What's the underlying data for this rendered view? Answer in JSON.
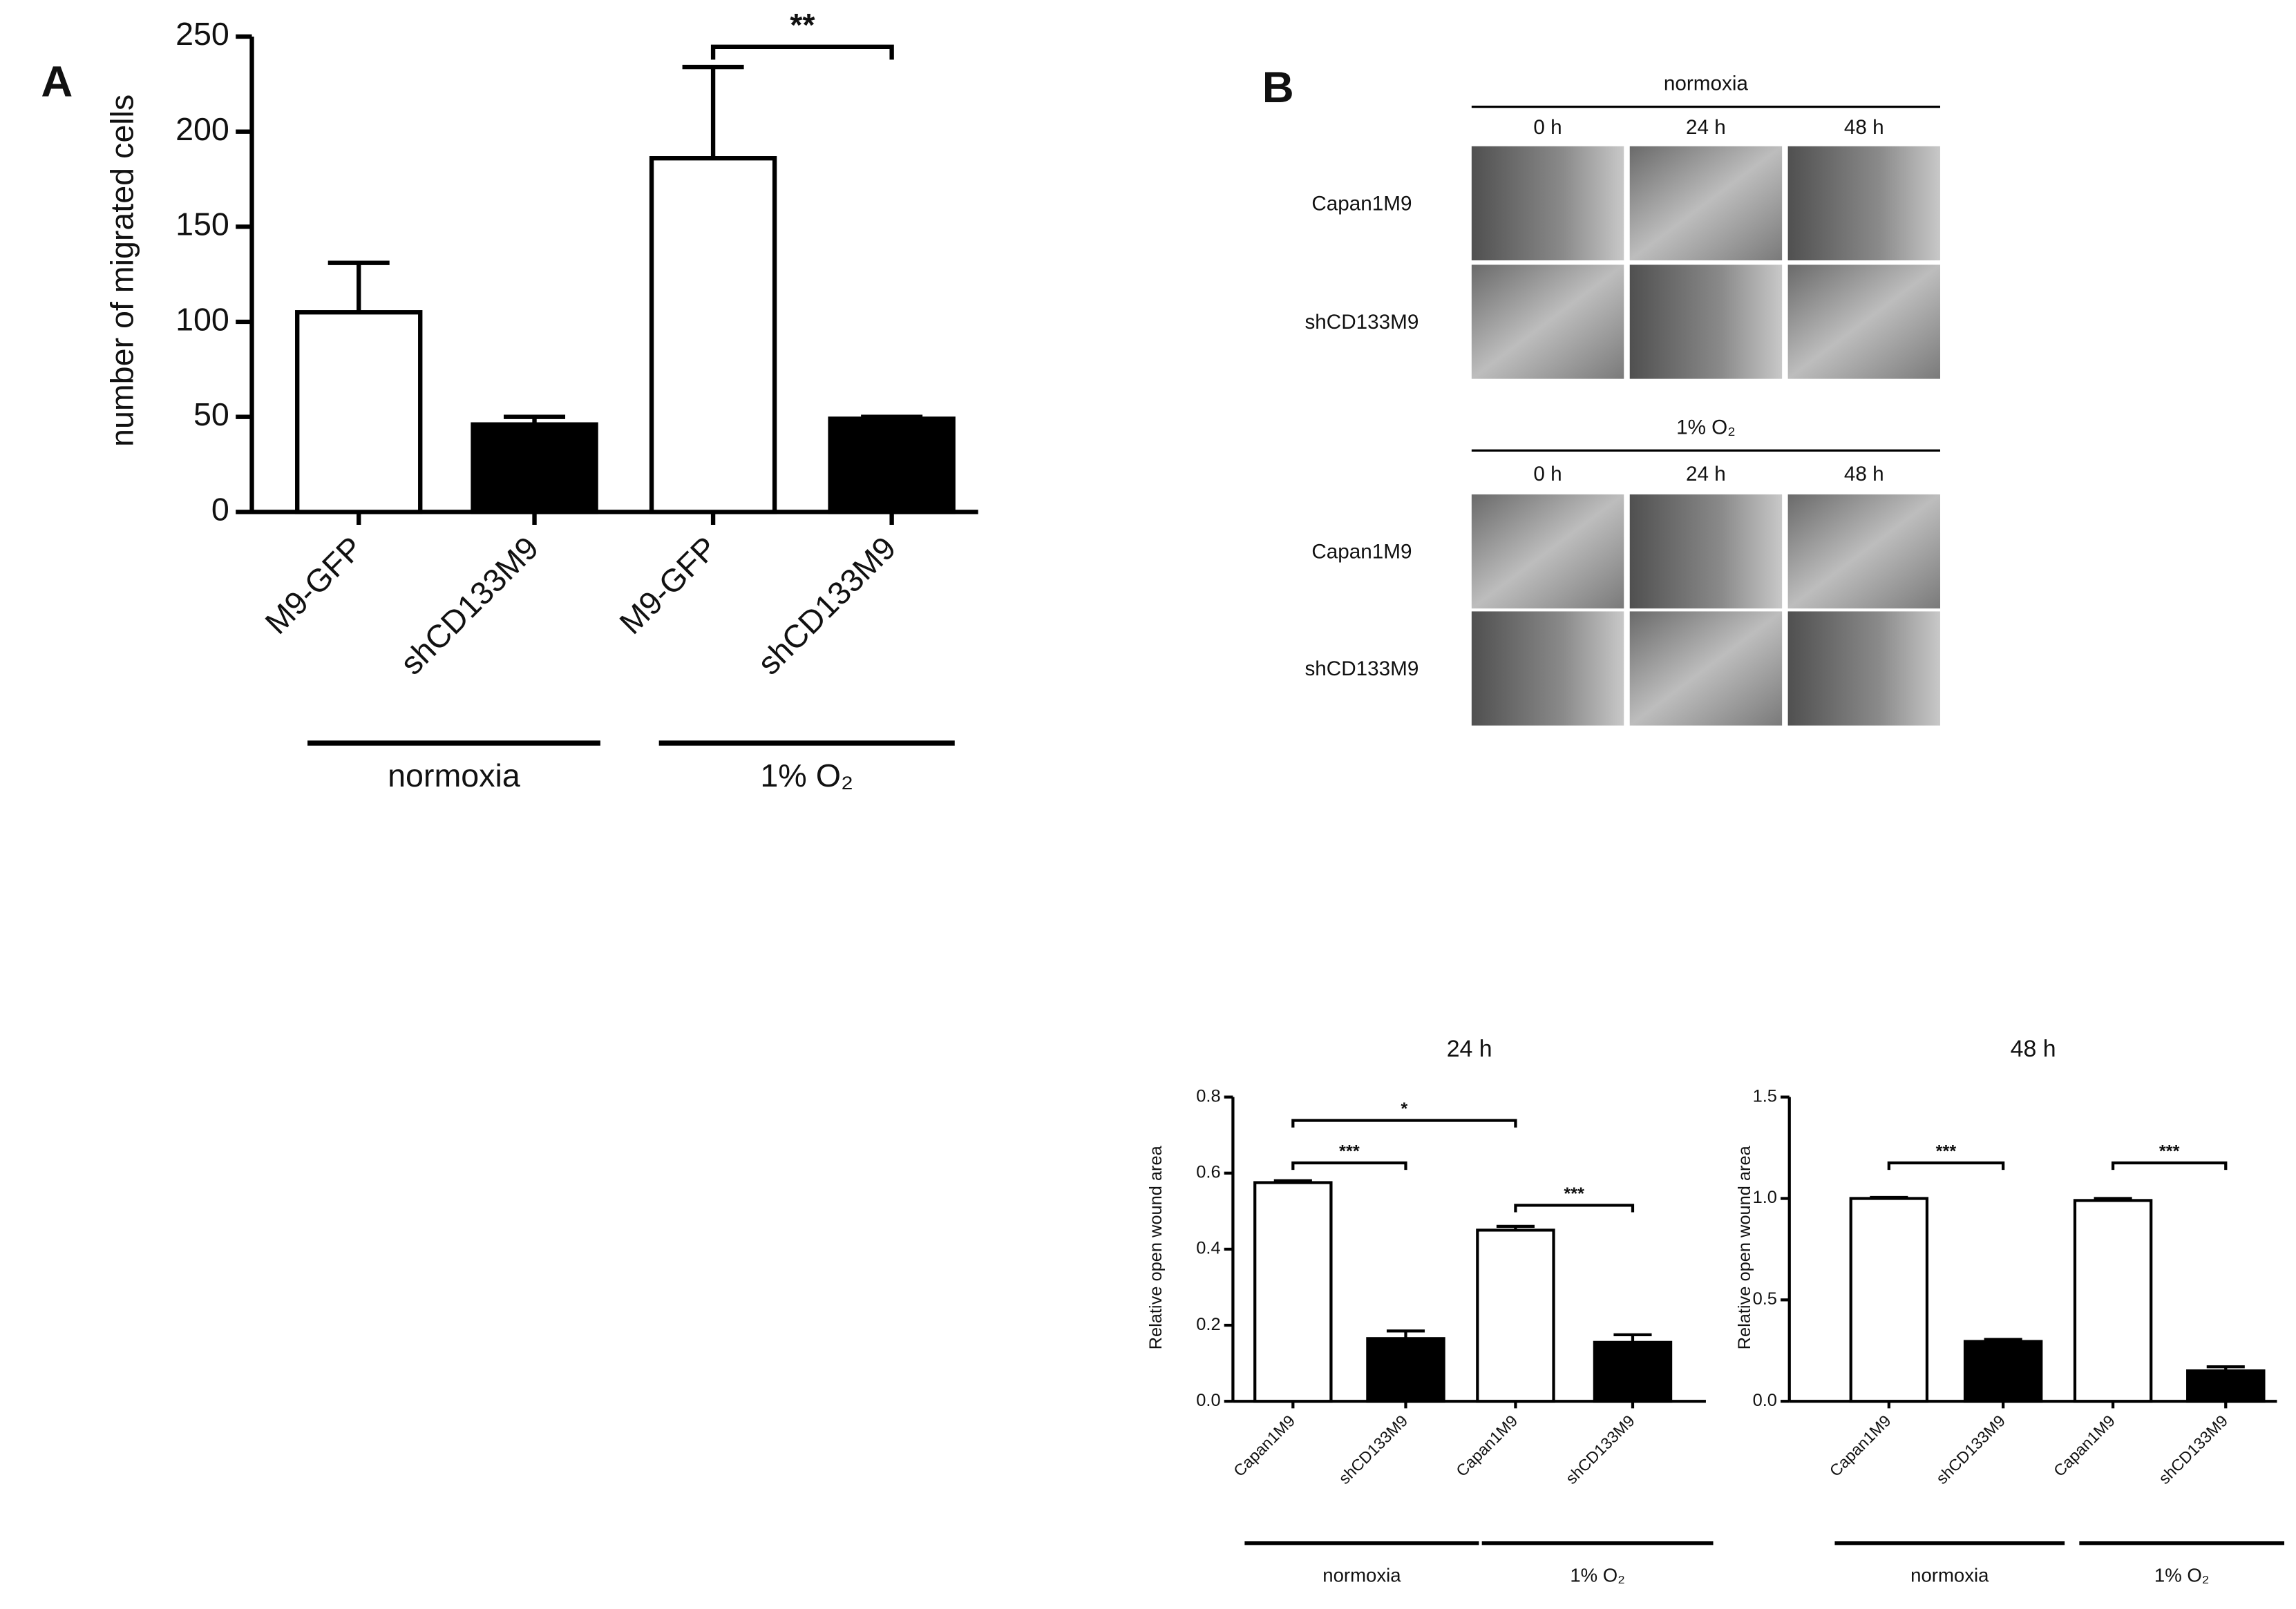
{
  "panel_labels": [
    "A",
    "B"
  ],
  "wound_images": [
    {
      "condition": "normoxia",
      "times": [
        "0 h",
        "24 h",
        "48 h"
      ],
      "rows": [
        "Capan1M9",
        "shCD133M9"
      ]
    },
    {
      "condition": "1% O₂",
      "times": [
        "0 h",
        "24 h",
        "48 h"
      ],
      "rows": [
        "Capan1M9",
        "shCD133M9"
      ]
    }
  ],
  "chart_data": [
    {
      "type": "bar",
      "y_label": "number of migrated cells",
      "categories": [
        "M9-GFP",
        "shCD133M9",
        "M9-GFP",
        "shCD133M9"
      ],
      "values": [
        105,
        46,
        186,
        49
      ],
      "errors": [
        26,
        4,
        48,
        1
      ],
      "colors": [
        "#ffffff",
        "#000000",
        "#ffffff",
        "#000000"
      ],
      "groups": [
        "normoxia",
        "1% O₂"
      ],
      "annotations": [
        "**"
      ],
      "ylim": [
        0,
        250
      ],
      "yticks": [
        0,
        50,
        100,
        150,
        200,
        250
      ]
    },
    {
      "type": "bar",
      "title": "24 h",
      "y_label": "Relative open wound area",
      "categories": [
        "Capan1M9",
        "shCD133M9",
        "Capan1M9",
        "shCD133M9"
      ],
      "values": [
        0.575,
        0.165,
        0.45,
        0.155
      ],
      "errors": [
        0.005,
        0.02,
        0.01,
        0.02
      ],
      "colors": [
        "#ffffff",
        "#000000",
        "#ffffff",
        "#000000"
      ],
      "groups": [
        "normoxia",
        "1% O₂"
      ],
      "annotations": [
        "***",
        "*",
        "***"
      ],
      "ylim": [
        0,
        0.8
      ],
      "yticks": [
        {
          "value": 0,
          "label": "0.0"
        },
        0.2,
        0.4,
        0.6,
        0.8
      ]
    },
    {
      "type": "bar",
      "title": "48 h",
      "y_label": "Relative open wound area",
      "categories": [
        "Capan1M9",
        "shCD133M9",
        "Capan1M9",
        "shCD133M9"
      ],
      "values": [
        1.0,
        0.295,
        0.99,
        0.15
      ],
      "errors": [
        0.005,
        0.01,
        0.01,
        0.02
      ],
      "colors": [
        "#ffffff",
        "#000000",
        "#ffffff",
        "#000000"
      ],
      "groups": [
        "normoxia",
        "1% O₂"
      ],
      "annotations": [
        "***",
        "***"
      ],
      "ylim": [
        0,
        1.5
      ],
      "yticks": [
        {
          "value": 0,
          "label": "0.0"
        },
        0.5,
        {
          "value": 1,
          "label": "1.0"
        },
        1.5
      ]
    }
  ]
}
